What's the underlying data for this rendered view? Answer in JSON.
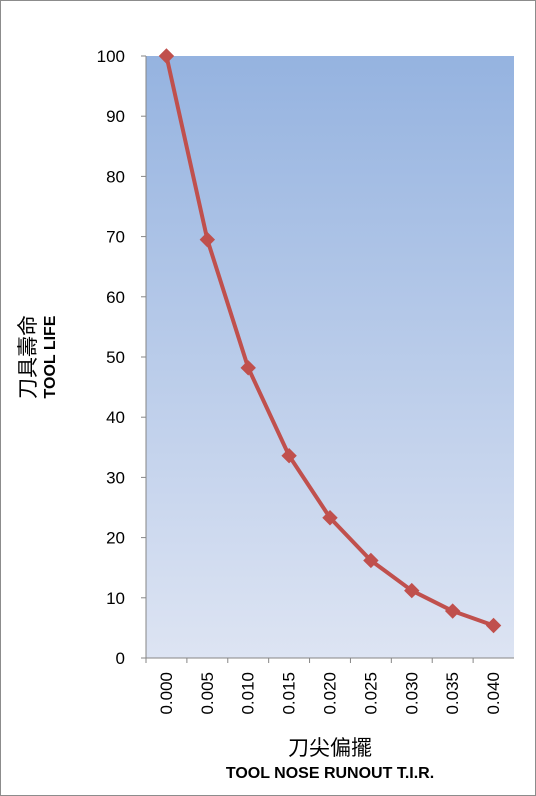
{
  "chart_data": {
    "type": "line",
    "x": [
      "0.000",
      "0.005",
      "0.010",
      "0.015",
      "0.020",
      "0.025",
      "0.030",
      "0.035",
      "0.040"
    ],
    "values": [
      100,
      69.5,
      48.2,
      33.6,
      23.3,
      16.2,
      11.2,
      7.8,
      5.4
    ],
    "xlabel": "刀尖偏擺",
    "xlabel_en": "TOOL NOSE RUNOUT  T.I.R.",
    "ylabel": "刀具壽命",
    "ylabel_en": "TOOL  LIFE",
    "ylim": [
      0,
      100
    ],
    "y_ticks": [
      0,
      10,
      20,
      30,
      40,
      50,
      60,
      70,
      80,
      90,
      100
    ],
    "grid": false,
    "legend": "none",
    "series_color": "#c0504d",
    "plot_gradient_top": "#95b3e0",
    "plot_gradient_bottom": "#dde4f3"
  }
}
